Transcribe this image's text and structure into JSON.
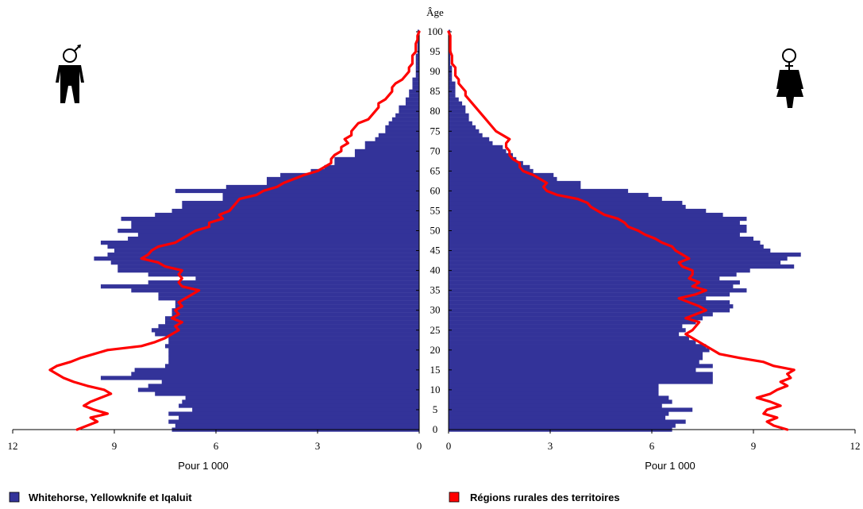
{
  "chart_data": {
    "type": "bar",
    "subtype": "population-pyramid",
    "age_axis": {
      "title": "Âge",
      "ticks": [
        "0",
        "5",
        "10",
        "15",
        "20",
        "25",
        "30",
        "35",
        "40",
        "45",
        "50",
        "55",
        "60",
        "65",
        "70",
        "75",
        "80",
        "85",
        "90",
        "95",
        "100"
      ],
      "range": [
        0,
        100
      ]
    },
    "x_axis": {
      "label": "Pour  1 000",
      "range": [
        0,
        12
      ],
      "ticks_left": [
        "12",
        "9",
        "6",
        "3",
        "0"
      ],
      "ticks_right": [
        "0",
        "3",
        "6",
        "9",
        "12"
      ]
    },
    "legend": {
      "placement": "bottom",
      "items": [
        {
          "label": "Whitehorse, Yellowknife et Iqaluit",
          "color": "#333399"
        },
        {
          "label": "Régions rurales des territoires",
          "color": "#ff0000"
        }
      ]
    },
    "symbols": {
      "left": "male-figure-icon",
      "right": "female-figure-icon"
    },
    "series": [
      {
        "name": "Whitehorse, Yellowknife et Iqaluit",
        "sex": "male",
        "kind": "bars",
        "color": "#333399",
        "values": [
          7.3,
          7.2,
          7.4,
          7.1,
          7.4,
          6.7,
          7.1,
          7.0,
          6.9,
          7.8,
          8.3,
          8.0,
          7.6,
          9.4,
          8.5,
          8.4,
          7.5,
          7.4,
          7.4,
          7.4,
          7.4,
          7.5,
          7.4,
          7.4,
          7.8,
          7.9,
          7.7,
          7.5,
          7.5,
          7.3,
          7.3,
          7.2,
          7.2,
          7.7,
          7.7,
          8.5,
          9.4,
          8.0,
          6.6,
          8.0,
          8.9,
          8.9,
          9.1,
          9.6,
          9.2,
          9.0,
          9.2,
          9.4,
          8.6,
          8.3,
          8.9,
          8.5,
          8.5,
          8.8,
          7.8,
          7.3,
          7.0,
          7.0,
          5.8,
          5.8,
          7.2,
          5.7,
          4.5,
          4.5,
          4.1,
          3.2,
          2.8,
          2.5,
          2.5,
          1.9,
          1.9,
          1.6,
          1.6,
          1.3,
          1.2,
          1.0,
          1.0,
          0.9,
          0.8,
          0.7,
          0.6,
          0.6,
          0.4,
          0.4,
          0.3,
          0.3,
          0.2,
          0.2,
          0.2,
          0.1,
          0.1,
          0.1,
          0.1,
          0.1,
          0.1,
          0.05,
          0.05,
          0.05,
          0.05,
          0.05,
          0.05
        ]
      },
      {
        "name": "Whitehorse, Yellowknife et Iqaluit",
        "sex": "female",
        "kind": "bars",
        "color": "#333399",
        "values": [
          6.6,
          6.7,
          7.0,
          6.4,
          6.5,
          7.2,
          6.3,
          6.6,
          6.5,
          6.2,
          6.2,
          6.2,
          7.8,
          7.8,
          7.8,
          7.3,
          7.8,
          7.4,
          7.5,
          7.5,
          7.7,
          7.6,
          7.3,
          7.1,
          6.8,
          7.0,
          6.9,
          7.3,
          7.5,
          7.8,
          8.3,
          8.4,
          8.3,
          7.6,
          8.3,
          8.8,
          8.4,
          8.6,
          8.0,
          8.5,
          8.9,
          10.2,
          9.8,
          10.0,
          10.4,
          9.5,
          9.3,
          9.2,
          9.0,
          8.6,
          8.8,
          8.8,
          8.6,
          8.8,
          8.1,
          7.6,
          7.0,
          6.9,
          6.3,
          5.9,
          5.3,
          3.9,
          3.9,
          3.2,
          3.1,
          2.5,
          2.4,
          2.2,
          2.0,
          1.9,
          1.7,
          1.6,
          1.3,
          1.2,
          1.0,
          0.9,
          0.8,
          0.7,
          0.6,
          0.6,
          0.5,
          0.5,
          0.4,
          0.3,
          0.2,
          0.2,
          0.2,
          0.2,
          0.1,
          0.1,
          0.1,
          0.1,
          0.05,
          0.05,
          0.05,
          0.05,
          0.05,
          0.05,
          0.05,
          0.05,
          0.05
        ]
      },
      {
        "name": "Régions rurales des territoires",
        "sex": "male",
        "kind": "line",
        "color": "#ff0000",
        "values": [
          10.1,
          9.8,
          9.5,
          9.7,
          9.2,
          9.6,
          9.9,
          9.7,
          9.4,
          9.1,
          9.3,
          9.8,
          10.2,
          10.5,
          10.7,
          10.9,
          10.7,
          10.3,
          10.0,
          9.6,
          9.2,
          8.2,
          7.8,
          7.5,
          7.3,
          7.1,
          7.2,
          7.0,
          7.3,
          7.1,
          7.2,
          7.0,
          7.1,
          6.9,
          6.7,
          6.5,
          7.0,
          7.1,
          7.0,
          7.1,
          7.0,
          7.5,
          7.7,
          8.2,
          8.0,
          7.9,
          7.7,
          7.2,
          7.0,
          6.8,
          6.6,
          6.2,
          6.2,
          5.8,
          5.9,
          5.6,
          5.5,
          5.4,
          5.3,
          4.8,
          4.6,
          4.2,
          4.0,
          3.7,
          3.4,
          3.0,
          2.8,
          2.6,
          2.6,
          2.5,
          2.3,
          2.3,
          2.1,
          2.2,
          2.0,
          2.0,
          1.9,
          1.8,
          1.5,
          1.4,
          1.3,
          1.2,
          1.2,
          1.0,
          0.9,
          0.8,
          0.8,
          0.7,
          0.5,
          0.4,
          0.3,
          0.3,
          0.2,
          0.2,
          0.2,
          0.1,
          0.1,
          0.1,
          0.05,
          0.05,
          0.0
        ]
      },
      {
        "name": "Régions rurales des territoires",
        "sex": "female",
        "kind": "line",
        "color": "#ff0000",
        "values": [
          10.0,
          9.6,
          9.4,
          9.7,
          9.3,
          9.4,
          9.8,
          9.5,
          9.1,
          9.5,
          9.7,
          10.0,
          9.8,
          10.1,
          10.0,
          10.2,
          9.6,
          9.3,
          8.6,
          8.0,
          7.8,
          7.6,
          7.4,
          7.2,
          7.0,
          7.2,
          7.3,
          7.4,
          7.0,
          7.3,
          7.6,
          7.4,
          7.1,
          6.8,
          7.3,
          7.6,
          7.2,
          7.4,
          7.1,
          7.2,
          7.2,
          6.9,
          6.8,
          7.1,
          6.9,
          6.7,
          6.6,
          6.3,
          6.1,
          5.8,
          5.6,
          5.3,
          5.2,
          5.0,
          4.6,
          4.4,
          4.2,
          4.1,
          3.8,
          3.2,
          2.9,
          2.8,
          2.9,
          2.7,
          2.5,
          2.2,
          2.1,
          2.1,
          1.9,
          1.8,
          1.8,
          1.7,
          1.7,
          1.8,
          1.6,
          1.4,
          1.3,
          1.2,
          1.1,
          1.0,
          0.9,
          0.8,
          0.7,
          0.6,
          0.5,
          0.5,
          0.4,
          0.3,
          0.3,
          0.2,
          0.2,
          0.2,
          0.1,
          0.1,
          0.1,
          0.05,
          0.05,
          0.05,
          0.05,
          0.05,
          0.0
        ]
      }
    ]
  }
}
